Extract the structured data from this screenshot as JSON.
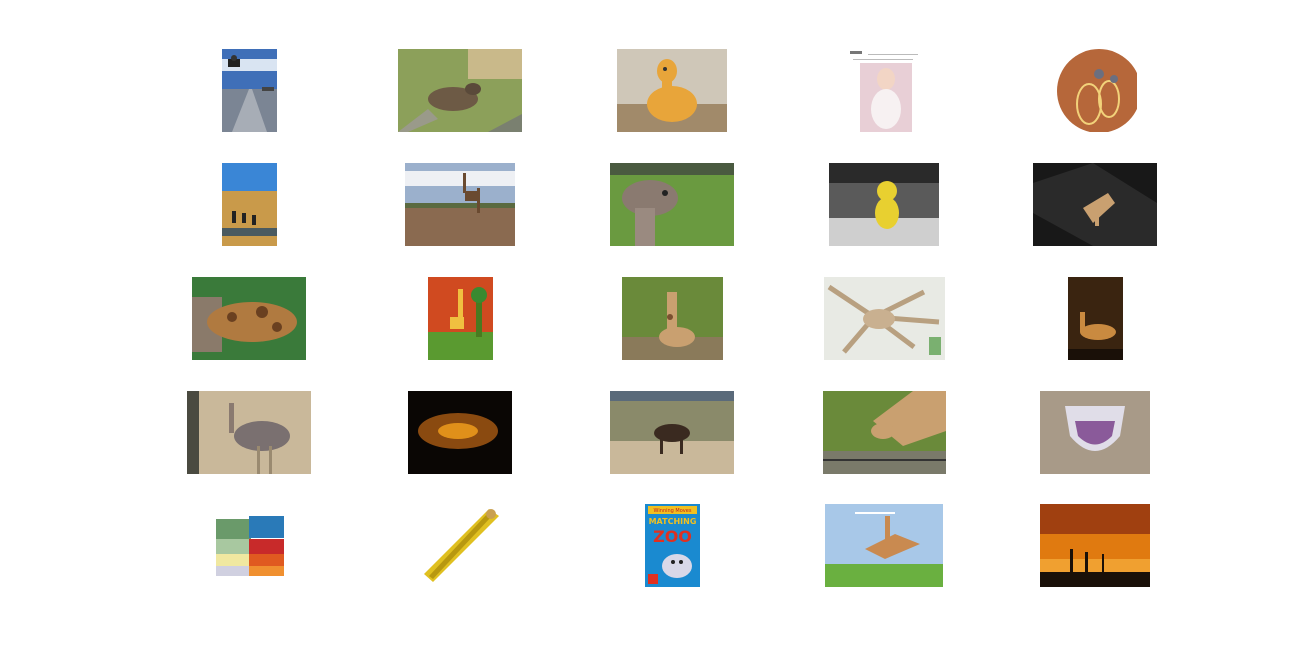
{
  "gallery": {
    "rows": 5,
    "columns": 5,
    "thumbnails": [
      {
        "name": "thumb-skateboarder",
        "kind": "photo"
      },
      {
        "name": "thumb-antelope-resting",
        "kind": "photo"
      },
      {
        "name": "thumb-plush-giraffe",
        "kind": "photo"
      },
      {
        "name": "thumb-fashion-model-page",
        "kind": "photo"
      },
      {
        "name": "thumb-earring",
        "kind": "photo"
      },
      {
        "name": "thumb-savanna-zebras",
        "kind": "photo"
      },
      {
        "name": "thumb-giraffe-road",
        "kind": "photo"
      },
      {
        "name": "thumb-ostrich-closeup",
        "kind": "photo"
      },
      {
        "name": "thumb-yellow-toy",
        "kind": "photo"
      },
      {
        "name": "thumb-giraffe-cutout-dark",
        "kind": "photo"
      },
      {
        "name": "thumb-giraffe-head-fence",
        "kind": "photo"
      },
      {
        "name": "thumb-giraffe-painting",
        "kind": "photo"
      },
      {
        "name": "thumb-baby-giraffe",
        "kind": "photo"
      },
      {
        "name": "thumb-stretched-giraffe-art",
        "kind": "photo"
      },
      {
        "name": "thumb-giraffe-lying-dark",
        "kind": "photo"
      },
      {
        "name": "thumb-ostrich-standing",
        "kind": "photo"
      },
      {
        "name": "thumb-giraffe-night",
        "kind": "photo"
      },
      {
        "name": "thumb-sable-antelope",
        "kind": "photo"
      },
      {
        "name": "thumb-giraffe-drinking-ad",
        "kind": "photo"
      },
      {
        "name": "thumb-cloth-diaper",
        "kind": "photo"
      },
      {
        "name": "thumb-towel-stack",
        "kind": "photo"
      },
      {
        "name": "thumb-giraffe-ruler",
        "kind": "photo"
      },
      {
        "name": "thumb-matching-zoo-box",
        "kind": "photo"
      },
      {
        "name": "thumb-flying-giraffe-ad",
        "kind": "photo"
      },
      {
        "name": "thumb-giraffe-sunset",
        "kind": "photo"
      }
    ],
    "box_text": {
      "brand": "Winning Moves",
      "title_line1": "MATCHING",
      "title_line2": "ZOO"
    }
  }
}
